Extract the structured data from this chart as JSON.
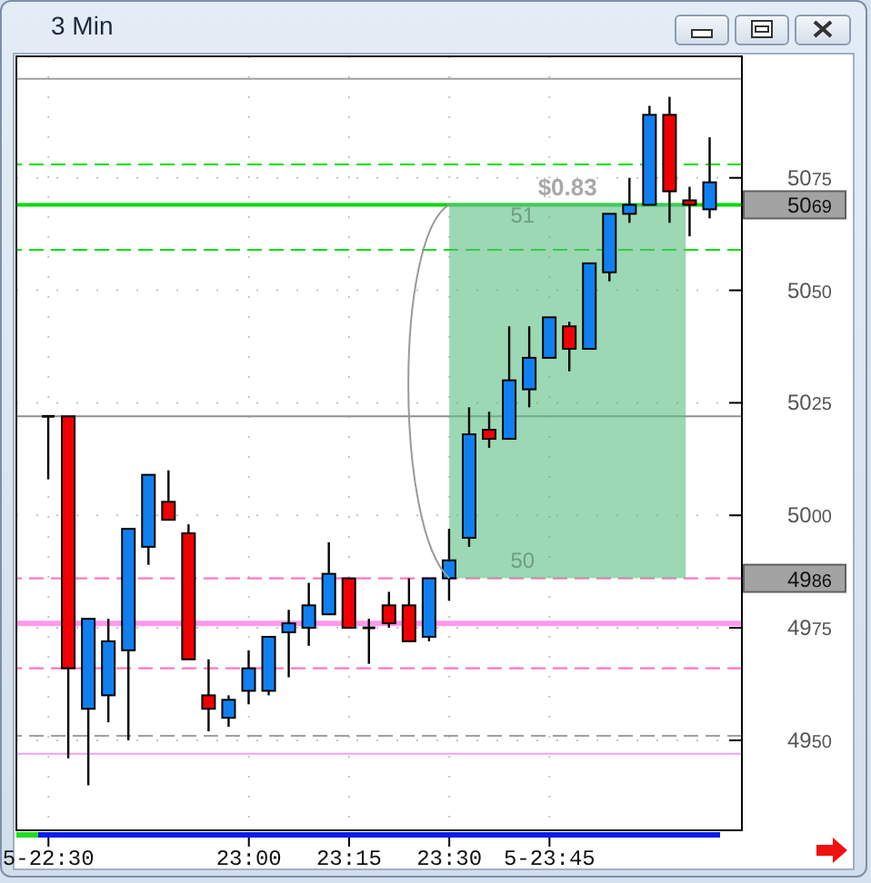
{
  "chart_data": {
    "type": "candlestick",
    "title": "3 Min",
    "x": [
      22.5,
      22.55,
      22.6,
      22.65,
      22.7,
      22.75,
      22.8,
      22.85,
      22.9,
      22.95,
      23,
      23.05,
      23.1,
      23.15,
      23.2,
      23.25,
      23.3,
      23.35,
      23.4,
      23.45,
      23.5,
      23.55,
      23.6,
      23.65,
      23.7,
      23.75,
      23.8,
      23.85,
      23.9,
      23.95,
      24,
      24.05,
      24.1,
      24.15
    ],
    "ohlc": [
      [
        5022,
        5022,
        5008,
        5022
      ],
      [
        5022,
        5022,
        4946,
        4966
      ],
      [
        4957,
        4977,
        4940,
        4977
      ],
      [
        4960,
        4977,
        4954,
        4972
      ],
      [
        4970,
        4997,
        4950,
        4997
      ],
      [
        4993,
        5009,
        4989,
        5009
      ],
      [
        5003,
        5010,
        4999,
        4999
      ],
      [
        4996,
        4998,
        4968,
        4968
      ],
      [
        4960,
        4968,
        4952,
        4957
      ],
      [
        4955,
        4960,
        4953,
        4959
      ],
      [
        4961,
        4970,
        4958,
        4966
      ],
      [
        4961,
        4973,
        4960,
        4973
      ],
      [
        4974,
        4979,
        4964,
        4976
      ],
      [
        4975,
        4985,
        4971,
        4980
      ],
      [
        4978,
        4994,
        4978,
        4987
      ],
      [
        4986,
        4986,
        4975,
        4975
      ],
      [
        4975,
        4977,
        4967,
        4975
      ],
      [
        4980,
        4983,
        4975,
        4976
      ],
      [
        4980,
        4986,
        4972,
        4972
      ],
      [
        4973,
        4986,
        4972,
        4986
      ],
      [
        4986,
        4997,
        4981,
        4990
      ],
      [
        4995,
        5024,
        4993,
        5018
      ],
      [
        5019,
        5023,
        5015,
        5017
      ],
      [
        5017,
        5042,
        5017,
        5030
      ],
      [
        5028,
        5042,
        5024,
        5035
      ],
      [
        5035,
        5044,
        5035,
        5044
      ],
      [
        5042,
        5043,
        5032,
        5037
      ],
      [
        5037,
        5056,
        5037,
        5056
      ],
      [
        5054,
        5067,
        5052,
        5067
      ],
      [
        5067,
        5075,
        5065,
        5069
      ],
      [
        5069,
        5091,
        5069,
        5089
      ],
      [
        5089,
        5093,
        5065,
        5072
      ],
      [
        5070,
        5073,
        5062,
        5069
      ],
      [
        5068,
        5084,
        5066,
        5074
      ]
    ],
    "colors": [
      "#000000",
      "#f00000",
      "#1080f0",
      "#1080f0",
      "#1080f0",
      "#1080f0",
      "#f00000",
      "#f00000",
      "#f00000",
      "#1080f0",
      "#1080f0",
      "#1080f0",
      "#1080f0",
      "#1080f0",
      "#1080f0",
      "#f00000",
      "#000000",
      "#f00000",
      "#f00000",
      "#1080f0",
      "#1080f0",
      "#1080f0",
      "#f00000",
      "#1080f0",
      "#1080f0",
      "#1080f0",
      "#f00000",
      "#1080f0",
      "#1080f0",
      "#1080f0",
      "#1080f0",
      "#f00000",
      "#f00000",
      "#1080f0"
    ],
    "series": [
      {
        "type": "line",
        "x": [
          23.5,
          24.09
        ],
        "values": [
          5069,
          5069
        ],
        "lower": [
          4986,
          4986
        ],
        "upper": [
          5069,
          5069
        ],
        "color": "#58be80"
      }
    ],
    "xlim": [
      22.42,
      24.23
    ],
    "xticks": [
      {
        "value": 22.5,
        "label": "5-22:30"
      },
      {
        "value": 23,
        "label": "23:00"
      },
      {
        "value": 23.25,
        "label": "23:15"
      },
      {
        "value": 23.5,
        "label": "23:30"
      },
      {
        "value": 23.75,
        "label": "5-23:45"
      }
    ],
    "ylim": [
      4930,
      5102
    ],
    "yticks": [
      4950,
      4975,
      5000,
      5025,
      5050,
      5075
    ],
    "grid": true,
    "ref_lines": [
      {
        "axis": "y",
        "value": 5097,
        "color": "#a0a0a0",
        "line_style": "solid"
      },
      {
        "axis": "y",
        "value": 5078,
        "color": "#00dd00",
        "line_style": "dashed"
      },
      {
        "axis": "y",
        "value": 5069,
        "label": "5069",
        "color": "#00dd00",
        "line_style": "solid"
      },
      {
        "axis": "y",
        "value": 5059,
        "color": "#00dd00",
        "line_style": "dashed"
      },
      {
        "axis": "y",
        "value": 5022,
        "color": "#909090",
        "line_style": "solid"
      },
      {
        "axis": "y",
        "value": 4986,
        "label": "4986",
        "color": "#ff77c0",
        "line_style": "dashed"
      },
      {
        "axis": "y",
        "value": 4976,
        "color": "#ff99ee",
        "line_style": "solid"
      },
      {
        "axis": "y",
        "value": 4966,
        "color": "#ff77c0",
        "line_style": "dashed"
      },
      {
        "axis": "y",
        "value": 4951,
        "color": "#a0a0a0",
        "line_style": "dashed"
      },
      {
        "axis": "y",
        "value": 4947,
        "color": "#f0a0f0",
        "line_style": "solid"
      }
    ],
    "annotations": [
      "$0.83",
      "51",
      "50"
    ]
  }
}
